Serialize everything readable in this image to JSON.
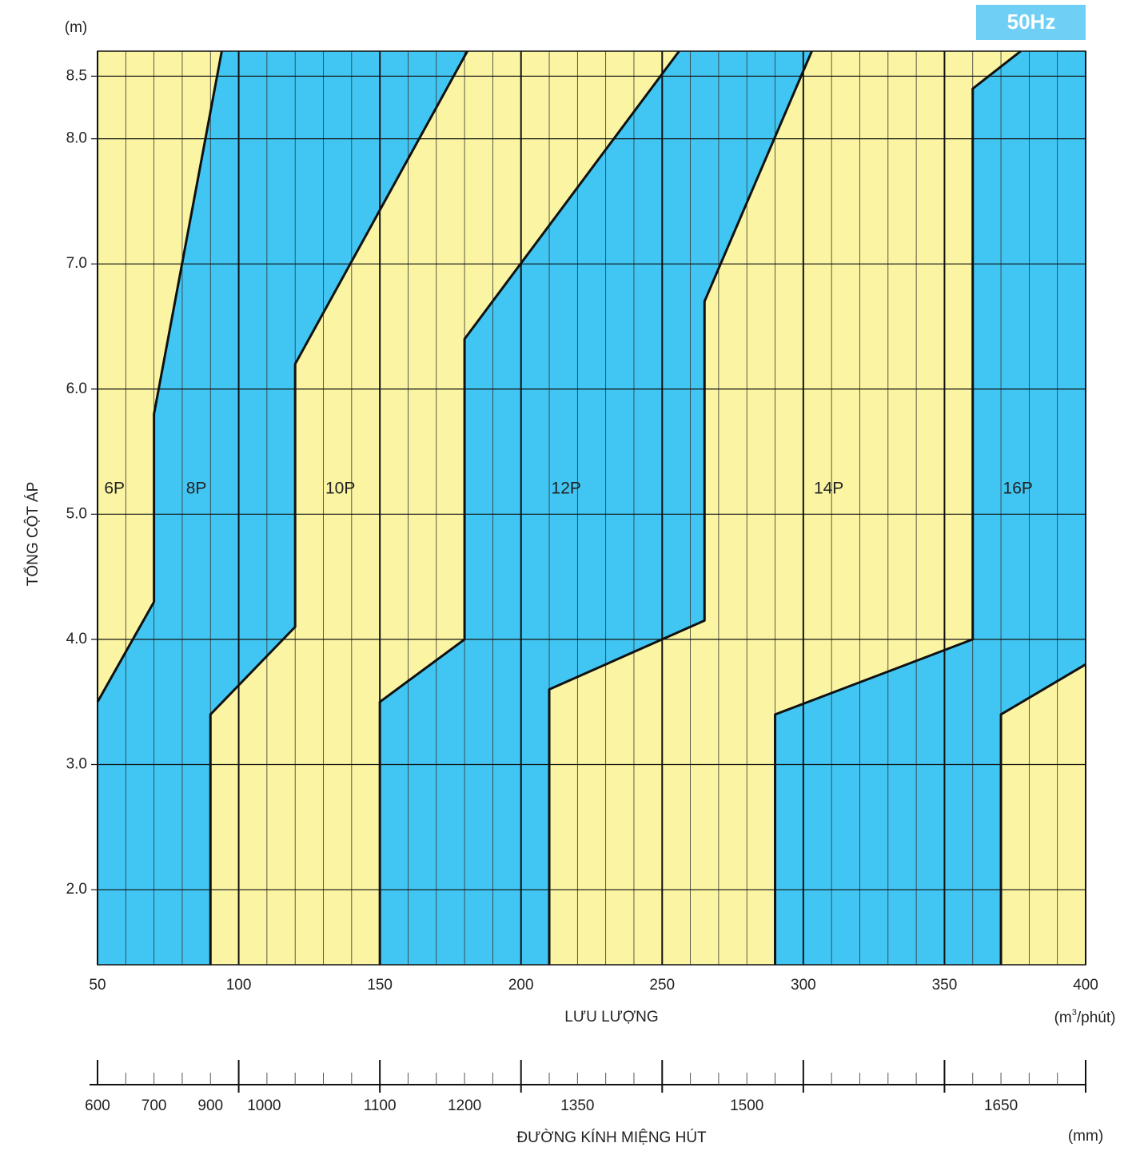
{
  "chart_data": {
    "type": "region",
    "badge": "50Hz",
    "y_unit": "(m)",
    "y_label": "TỔNG CỘT ÁP",
    "x_label": "LƯU LƯỢNG",
    "x_unit_parts": [
      "(m",
      "3",
      "/phút)"
    ],
    "xlim": [
      50,
      400
    ],
    "xticks": [
      50,
      100,
      150,
      200,
      250,
      300,
      350,
      400
    ],
    "minor_grid_step": 10,
    "ylim": [
      1.4,
      8.7
    ],
    "yticks": [
      {
        "value": 2,
        "label": "2.0"
      },
      {
        "value": 3,
        "label": "3.0"
      },
      {
        "value": 4,
        "label": "4.0"
      },
      {
        "value": 5,
        "label": "5.0"
      },
      {
        "value": 6,
        "label": "6.0"
      },
      {
        "value": 7,
        "label": "7.0"
      },
      {
        "value": 8,
        "label": "8.0"
      },
      8.5
    ],
    "background_color": "#fbf5a3",
    "boundaries": [
      {
        "x": [
          50,
          70,
          70,
          94
        ],
        "y": [
          3.5,
          4.3,
          5.8,
          8.7
        ]
      },
      {
        "x": [
          90,
          90,
          120,
          120,
          181
        ],
        "y": [
          1.4,
          3.4,
          4.1,
          6.2,
          8.7
        ]
      },
      {
        "x": [
          150,
          150,
          180,
          180,
          256
        ],
        "y": [
          1.4,
          3.5,
          4.0,
          6.4,
          8.7
        ]
      },
      {
        "x": [
          210,
          210,
          265,
          265,
          303
        ],
        "y": [
          1.4,
          3.6,
          4.15,
          6.7,
          8.7
        ]
      },
      {
        "x": [
          290,
          290,
          360,
          360,
          377
        ],
        "y": [
          1.4,
          3.4,
          4.0,
          8.4,
          8.7
        ]
      },
      {
        "x": [
          370,
          370,
          400
        ],
        "y": [
          1.4,
          3.4,
          3.8
        ]
      }
    ],
    "bands": [
      {
        "color": "#41c6f3",
        "left": 0,
        "right": 1
      },
      {
        "color": "#41c6f3",
        "left": 2,
        "right": 3
      },
      {
        "color": "#41c6f3",
        "left": 4,
        "right": 5
      }
    ],
    "annotations": [
      {
        "text": "6P",
        "x": 56,
        "y": 5.2
      },
      {
        "text": "8P",
        "x": 85,
        "y": 5.2
      },
      {
        "text": "10P",
        "x": 136,
        "y": 5.2
      },
      {
        "text": "12P",
        "x": 216,
        "y": 5.2
      },
      {
        "text": "14P",
        "x": 309,
        "y": 5.2
      },
      {
        "text": "16P",
        "x": 376,
        "y": 5.2
      }
    ],
    "diameter_scale": {
      "label": "ĐƯỜNG KÍNH MIỆNG HÚT",
      "unit": "(mm)",
      "at": [
        50,
        70,
        90,
        109,
        150,
        180,
        220,
        280,
        370
      ],
      "values": [
        600,
        700,
        900,
        1000,
        1100,
        1200,
        1350,
        1500,
        1650
      ]
    }
  }
}
